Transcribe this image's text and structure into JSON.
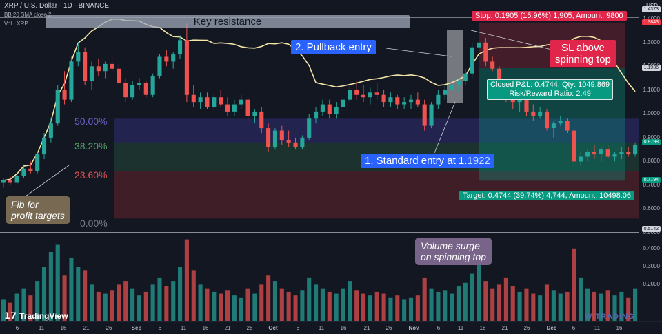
{
  "header": {
    "symbol_line": "XRP / U.S. Dollar · 1D · BINANCE",
    "indicator_line": "BB 20 SMA close 2",
    "volume_line": "Vol · XRP",
    "currency": "USD"
  },
  "annotations": {
    "key_resistance": "Key resistance",
    "pullback_entry": "2. Pullback entry",
    "standard_entry_prefix": "1. Standard entry at 1.",
    "standard_entry_suffix": "1922",
    "sl_note_line1": "SL above",
    "sl_note_line2": "spinning top",
    "fib_note_line1": "Fib for",
    "fib_note_line2": "profit targets",
    "volume_note_line1": "Volume surge",
    "volume_note_line2": "on spinning top",
    "stop_label": "Stop: 0.1905 (15.96%) 1,905, Amount: 9800",
    "closed_pnl_line1": "Closed P&L: 0.4744, Qty: 1049.869",
    "closed_pnl_line2": "Risk/Reward Ratio: 2.49",
    "target_label": "Target: 0.4744 (39.74%) 4,744, Amount: 10498.06",
    "logo": "TradingView",
    "watermark": "WITRADING"
  },
  "fib_levels": [
    {
      "label": "50.00%",
      "color": "#6b62c9"
    },
    {
      "label": "38.20%",
      "color": "#56a36a"
    },
    {
      "label": "23.60%",
      "color": "#e05555"
    },
    {
      "label": "0.00%",
      "color": "#787b86"
    }
  ],
  "price_axis": {
    "ticks": [
      "1.4000",
      "1.3000",
      "1.2000",
      "1.1000",
      "1.0000",
      "0.9000",
      "0.8000",
      "0.7000",
      "0.6000",
      "0.5000"
    ],
    "tags": [
      {
        "text": "1.4373",
        "bg": "#d1d4dc"
      },
      {
        "text": "1.3843",
        "bg": "#f23645"
      },
      {
        "text": "1.1936",
        "bg": "#d1d4dc"
      },
      {
        "text": "0.8798",
        "bg": "#089981"
      },
      {
        "text": "0.7194",
        "bg": "#089981"
      },
      {
        "text": "0.5142",
        "bg": "#d1d4dc"
      }
    ]
  },
  "volume_axis": {
    "ticks": [
      "0.4000",
      "0.3000",
      "0.2000"
    ]
  },
  "time_axis": {
    "ticks": [
      "6",
      "11",
      "16",
      "21",
      "26",
      "Sep",
      "6",
      "11",
      "16",
      "21",
      "26",
      "Oct",
      "6",
      "11",
      "16",
      "21",
      "26",
      "Nov",
      "6",
      "11",
      "16",
      "21",
      "26",
      "Dec",
      "6",
      "11",
      "16"
    ]
  },
  "colors": {
    "up": "#26a69a",
    "down": "#ef5350",
    "bollinger": "#f5e6a8",
    "background": "#131722"
  },
  "chart_data": {
    "type": "candlestick",
    "symbol": "XRP / U.S. Dollar",
    "interval": "1D",
    "exchange": "BINANCE",
    "ylim": [
      0.5,
      1.45
    ],
    "entries": {
      "standard_entry": 1.1922,
      "stop": 1.3843,
      "target": 0.7194
    },
    "fib_retracement": {
      "50.00%": 0.98,
      "38.20%": 0.88,
      "23.60%": 0.76,
      "0.00%": 0.56
    },
    "ohlc": [
      [
        0.71,
        0.73,
        0.69,
        0.72
      ],
      [
        0.72,
        0.74,
        0.7,
        0.71
      ],
      [
        0.71,
        0.75,
        0.7,
        0.74
      ],
      [
        0.74,
        0.78,
        0.73,
        0.77
      ],
      [
        0.77,
        0.8,
        0.75,
        0.76
      ],
      [
        0.76,
        0.84,
        0.75,
        0.83
      ],
      [
        0.83,
        0.92,
        0.81,
        0.9
      ],
      [
        0.9,
        0.98,
        0.88,
        0.96
      ],
      [
        0.96,
        1.12,
        0.95,
        1.1
      ],
      [
        1.1,
        1.18,
        1.04,
        1.06
      ],
      [
        1.06,
        1.24,
        1.05,
        1.22
      ],
      [
        1.22,
        1.3,
        1.2,
        1.26
      ],
      [
        1.26,
        1.28,
        1.12,
        1.14
      ],
      [
        1.14,
        1.22,
        1.1,
        1.2
      ],
      [
        1.2,
        1.23,
        1.16,
        1.18
      ],
      [
        1.18,
        1.22,
        1.15,
        1.21
      ],
      [
        1.21,
        1.24,
        1.18,
        1.19
      ],
      [
        1.19,
        1.21,
        1.12,
        1.13
      ],
      [
        1.13,
        1.15,
        1.05,
        1.07
      ],
      [
        1.07,
        1.14,
        1.06,
        1.12
      ],
      [
        1.12,
        1.15,
        1.1,
        1.13
      ],
      [
        1.13,
        1.14,
        1.07,
        1.08
      ],
      [
        1.08,
        1.17,
        1.07,
        1.16
      ],
      [
        1.16,
        1.25,
        1.15,
        1.24
      ],
      [
        1.24,
        1.27,
        1.2,
        1.22
      ],
      [
        1.22,
        1.26,
        1.19,
        1.25
      ],
      [
        1.25,
        1.33,
        1.23,
        1.31
      ],
      [
        1.31,
        1.38,
        1.05,
        1.08
      ],
      [
        1.08,
        1.12,
        1.03,
        1.05
      ],
      [
        1.05,
        1.09,
        1.02,
        1.07
      ],
      [
        1.07,
        1.09,
        1.02,
        1.03
      ],
      [
        1.03,
        1.08,
        1.02,
        1.07
      ],
      [
        1.07,
        1.1,
        1.03,
        1.04
      ],
      [
        1.04,
        1.07,
        0.99,
        1.01
      ],
      [
        1.01,
        1.06,
        0.99,
        1.04
      ],
      [
        1.04,
        1.08,
        1.02,
        1.06
      ],
      [
        1.06,
        1.07,
        0.97,
        0.99
      ],
      [
        0.99,
        1.02,
        0.96,
        1.01
      ],
      [
        1.01,
        1.03,
        0.92,
        0.94
      ],
      [
        0.94,
        0.96,
        0.84,
        0.86
      ],
      [
        0.86,
        0.94,
        0.85,
        0.93
      ],
      [
        0.93,
        0.95,
        0.87,
        0.89
      ],
      [
        0.89,
        0.93,
        0.86,
        0.88
      ],
      [
        0.88,
        0.9,
        0.85,
        0.86
      ],
      [
        0.86,
        0.91,
        0.85,
        0.9
      ],
      [
        0.9,
        1.0,
        0.89,
        0.98
      ],
      [
        0.98,
        1.03,
        0.96,
        1.01
      ],
      [
        1.01,
        1.06,
        0.99,
        1.04
      ],
      [
        1.04,
        1.06,
        0.98,
        1.0
      ],
      [
        1.0,
        1.05,
        0.98,
        1.03
      ],
      [
        1.03,
        1.08,
        1.01,
        1.06
      ],
      [
        1.06,
        1.12,
        1.05,
        1.1
      ],
      [
        1.1,
        1.14,
        1.06,
        1.08
      ],
      [
        1.08,
        1.12,
        1.05,
        1.07
      ],
      [
        1.07,
        1.11,
        1.04,
        1.09
      ],
      [
        1.09,
        1.13,
        1.06,
        1.08
      ],
      [
        1.08,
        1.1,
        1.03,
        1.05
      ],
      [
        1.05,
        1.09,
        1.03,
        1.07
      ],
      [
        1.07,
        1.08,
        1.02,
        1.04
      ],
      [
        1.04,
        1.07,
        1.02,
        1.05
      ],
      [
        1.05,
        1.08,
        1.02,
        1.06
      ],
      [
        1.06,
        1.09,
        1.03,
        1.04
      ],
      [
        1.04,
        1.06,
        0.93,
        0.95
      ],
      [
        0.95,
        1.05,
        0.94,
        1.04
      ],
      [
        1.04,
        1.1,
        1.02,
        1.08
      ],
      [
        1.08,
        1.12,
        1.06,
        1.1
      ],
      [
        1.1,
        1.13,
        1.07,
        1.12
      ],
      [
        1.12,
        1.15,
        1.09,
        1.14
      ],
      [
        1.14,
        1.19,
        1.12,
        1.17
      ],
      [
        1.17,
        1.3,
        1.15,
        1.28
      ],
      [
        1.28,
        1.35,
        1.23,
        1.3
      ],
      [
        1.3,
        1.32,
        1.2,
        1.22
      ],
      [
        1.22,
        1.24,
        1.18,
        1.19
      ],
      [
        1.19,
        1.2,
        1.12,
        1.13
      ],
      [
        1.13,
        1.14,
        1.05,
        1.06
      ],
      [
        1.06,
        1.09,
        1.02,
        1.05
      ],
      [
        1.05,
        1.08,
        1.01,
        1.06
      ],
      [
        1.06,
        1.07,
        0.99,
        1.01
      ],
      [
        1.01,
        1.04,
        0.97,
        0.99
      ],
      [
        0.99,
        1.03,
        0.98,
        1.01
      ],
      [
        1.01,
        1.02,
        0.93,
        0.94
      ],
      [
        0.94,
        0.97,
        0.9,
        0.96
      ],
      [
        0.96,
        0.99,
        0.95,
        0.97
      ],
      [
        0.97,
        0.98,
        0.92,
        0.93
      ],
      [
        0.93,
        0.94,
        0.77,
        0.8
      ],
      [
        0.8,
        0.84,
        0.78,
        0.82
      ],
      [
        0.82,
        0.85,
        0.8,
        0.84
      ],
      [
        0.84,
        0.87,
        0.81,
        0.83
      ],
      [
        0.83,
        0.86,
        0.8,
        0.85
      ],
      [
        0.85,
        0.87,
        0.81,
        0.82
      ],
      [
        0.82,
        0.84,
        0.8,
        0.83
      ],
      [
        0.83,
        0.86,
        0.81,
        0.84
      ],
      [
        0.84,
        0.86,
        0.82,
        0.83
      ],
      [
        0.83,
        0.88,
        0.82,
        0.87
      ]
    ],
    "volume": [
      0.12,
      0.1,
      0.15,
      0.18,
      0.14,
      0.22,
      0.3,
      0.38,
      0.42,
      0.25,
      0.35,
      0.3,
      0.28,
      0.2,
      0.16,
      0.15,
      0.17,
      0.2,
      0.22,
      0.18,
      0.14,
      0.16,
      0.2,
      0.24,
      0.19,
      0.22,
      0.3,
      0.45,
      0.28,
      0.2,
      0.18,
      0.16,
      0.15,
      0.17,
      0.14,
      0.13,
      0.18,
      0.15,
      0.2,
      0.25,
      0.22,
      0.18,
      0.16,
      0.14,
      0.17,
      0.24,
      0.2,
      0.18,
      0.16,
      0.15,
      0.18,
      0.22,
      0.17,
      0.15,
      0.14,
      0.16,
      0.15,
      0.13,
      0.14,
      0.12,
      0.13,
      0.14,
      0.24,
      0.18,
      0.16,
      0.17,
      0.15,
      0.19,
      0.21,
      0.26,
      0.32,
      0.22,
      0.18,
      0.2,
      0.24,
      0.19,
      0.16,
      0.18,
      0.15,
      0.14,
      0.2,
      0.17,
      0.15,
      0.16,
      0.4,
      0.24,
      0.18,
      0.16,
      0.15,
      0.17,
      0.14,
      0.16,
      0.13,
      0.18
    ]
  }
}
